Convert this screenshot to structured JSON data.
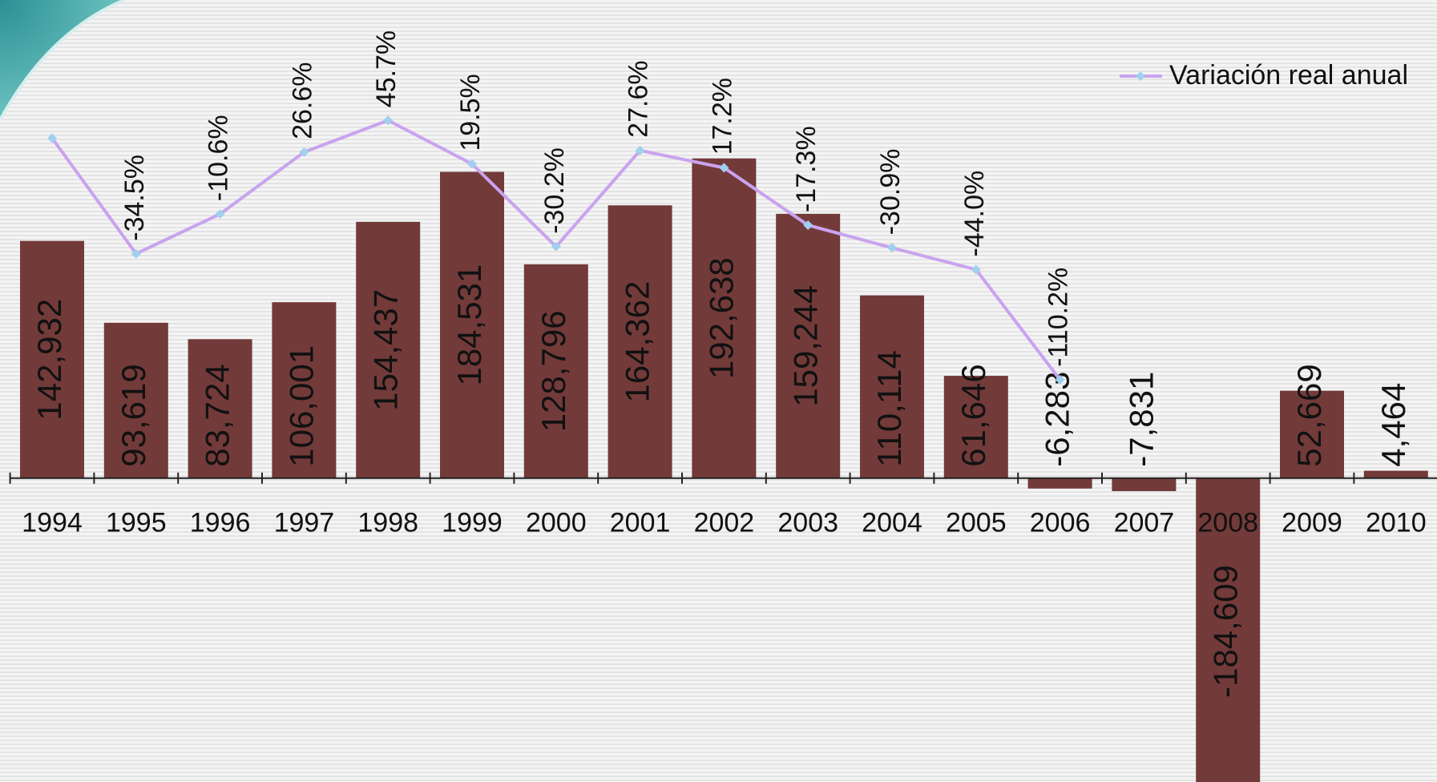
{
  "chart_data": {
    "type": "bar-line",
    "categories": [
      "1994",
      "1995",
      "1996",
      "1997",
      "1998",
      "1999",
      "2000",
      "2001",
      "2002",
      "2003",
      "2004",
      "2005",
      "2006",
      "2007",
      "2008",
      "2009",
      "2010"
    ],
    "series": [
      {
        "type": "bar",
        "color": "#733a3a",
        "values": [
          142932,
          93619,
          83724,
          106001,
          154437,
          184531,
          128796,
          164362,
          192638,
          159244,
          110114,
          61646,
          -6283,
          -7831,
          -184609,
          52669,
          4464
        ],
        "value_labels": [
          "142,932",
          "93,619",
          "83,724",
          "106,001",
          "154,437",
          "184,531",
          "128,796",
          "164,362",
          "192,638",
          "159,244",
          "110,114",
          "61,646",
          "-6,283",
          "-7,831",
          "-184,609",
          "52,669",
          "4,464"
        ]
      },
      {
        "type": "line",
        "name": "Variación real anual",
        "color": "#c9a3ef",
        "marker_color": "#9fd0ee",
        "axis": "y2",
        "values": [
          35,
          -34.5,
          -10.6,
          26.6,
          45.7,
          19.5,
          -30.2,
          27.6,
          17.2,
          -17.3,
          -30.9,
          -44.0,
          -110.2,
          null,
          null,
          null,
          null
        ],
        "value_labels": [
          null,
          "-34.5%",
          "-10.6%",
          "26.6%",
          "45.7%",
          "19.5%",
          "-30.2%",
          "27.6%",
          "17.2%",
          "-17.3%",
          "-30.9%",
          "-44.0%",
          "-110.2%",
          null,
          null,
          null,
          null
        ]
      }
    ],
    "ylim": [
      -185000,
      290000
    ],
    "y2lim": [
      -354,
      120
    ],
    "legend": "top-right"
  }
}
